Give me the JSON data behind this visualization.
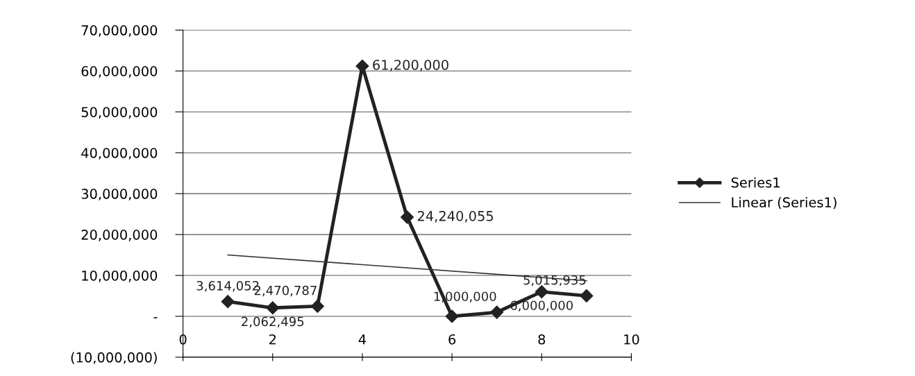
{
  "chart_data": {
    "type": "line",
    "x": [
      1,
      2,
      3,
      4,
      5,
      6,
      7,
      8,
      9
    ],
    "series": [
      {
        "name": "Series1",
        "color": "#222222",
        "marker": "diamond",
        "line_style": "solid",
        "values": [
          3614052,
          2062495,
          2470787,
          61200000,
          24240055,
          0,
          1000000,
          6000000,
          5015935
        ],
        "value_labels": [
          "3,614,052",
          "2,062,495",
          "2,470,787",
          "61,200,000",
          "24,240,055",
          null,
          "1,000,000",
          "6,000,000",
          "5,015,935"
        ]
      },
      {
        "name": "Linear (Series1)",
        "color": "#333333",
        "marker": "none",
        "line_style": "solid",
        "x": [
          1,
          9
        ],
        "values": [
          15000000,
          8700000
        ]
      }
    ],
    "xlim": [
      0,
      10
    ],
    "xticks": [
      0,
      2,
      4,
      6,
      8,
      10
    ],
    "ylim": [
      -10000000,
      70000000
    ],
    "yticks": [
      {
        "value": -10000000,
        "label": "(10,000,000)"
      },
      {
        "value": 0,
        "label": "-"
      },
      {
        "value": 10000000,
        "label": "10,000,000"
      },
      {
        "value": 20000000,
        "label": "20,000,000"
      },
      {
        "value": 30000000,
        "label": "30,000,000"
      },
      {
        "value": 40000000,
        "label": "40,000,000"
      },
      {
        "value": 50000000,
        "label": "50,000,000"
      },
      {
        "value": 60000000,
        "label": "60,000,000"
      },
      {
        "value": 70000000,
        "label": "70,000,000"
      }
    ],
    "grid": "y",
    "legend": "right"
  }
}
